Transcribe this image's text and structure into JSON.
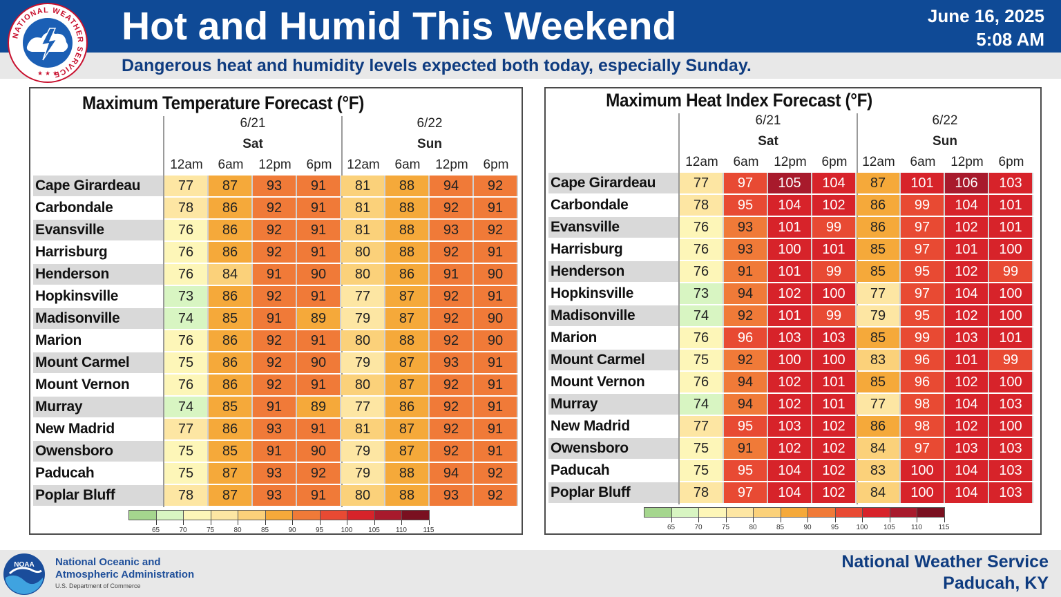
{
  "header": {
    "title": "Hot and Humid This Weekend",
    "date": "June 16, 2025",
    "time": "5:08 AM",
    "subtitle": "Dangerous heat and humidity levels expected both today, especially Sunday.",
    "logo_text": "NATIONAL WEATHER SERVICE"
  },
  "footer": {
    "noaa_line1": "National Oceanic and",
    "noaa_line2": "Atmospheric Administration",
    "noaa_line3": "U.S. Department of Commerce",
    "noaa_logo_text": "NOAA",
    "nws_line1": "National Weather Service",
    "nws_line2": "Paducah, KY"
  },
  "day_headers": [
    {
      "date": "6/21",
      "day": "Sat"
    },
    {
      "date": "6/22",
      "day": "Sun"
    }
  ],
  "times": [
    "12am",
    "6am",
    "12pm",
    "6pm",
    "12am",
    "6am",
    "12pm",
    "6pm"
  ],
  "cities": [
    "Cape Girardeau",
    "Carbondale",
    "Evansville",
    "Harrisburg",
    "Henderson",
    "Hopkinsville",
    "Madisonville",
    "Marion",
    "Mount Carmel",
    "Mount Vernon",
    "Murray",
    "New Madrid",
    "Owensboro",
    "Paducah",
    "Poplar Bluff"
  ],
  "legend": {
    "labels": [
      "65",
      "70",
      "75",
      "80",
      "85",
      "90",
      "95",
      "100",
      "105",
      "110",
      "115"
    ],
    "colors": [
      "#a5d68e",
      "#d8f5c2",
      "#fdf6b8",
      "#fde6a3",
      "#fbd17a",
      "#f5a93a",
      "#f07a38",
      "#e84a33",
      "#d7232a",
      "#a81a2c",
      "#7a1020"
    ]
  },
  "chart_data": [
    {
      "type": "table",
      "title": "Maximum Temperature Forecast (°F)",
      "columns": [
        "12am",
        "6am",
        "12pm",
        "6pm",
        "12am",
        "6am",
        "12pm",
        "6pm"
      ],
      "rows": [
        "Cape Girardeau",
        "Carbondale",
        "Evansville",
        "Harrisburg",
        "Henderson",
        "Hopkinsville",
        "Madisonville",
        "Marion",
        "Mount Carmel",
        "Mount Vernon",
        "Murray",
        "New Madrid",
        "Owensboro",
        "Paducah",
        "Poplar Bluff"
      ],
      "values": [
        [
          77,
          87,
          93,
          91,
          81,
          88,
          94,
          92
        ],
        [
          78,
          86,
          92,
          91,
          81,
          88,
          92,
          91
        ],
        [
          76,
          86,
          92,
          91,
          81,
          88,
          93,
          92
        ],
        [
          76,
          86,
          92,
          91,
          80,
          88,
          92,
          91
        ],
        [
          76,
          84,
          91,
          90,
          80,
          86,
          91,
          90
        ],
        [
          73,
          86,
          92,
          91,
          77,
          87,
          92,
          91
        ],
        [
          74,
          85,
          91,
          89,
          79,
          87,
          92,
          90
        ],
        [
          76,
          86,
          92,
          91,
          80,
          88,
          92,
          90
        ],
        [
          75,
          86,
          92,
          90,
          79,
          87,
          93,
          91
        ],
        [
          76,
          86,
          92,
          91,
          80,
          87,
          92,
          91
        ],
        [
          74,
          85,
          91,
          89,
          77,
          86,
          92,
          91
        ],
        [
          77,
          86,
          93,
          91,
          81,
          87,
          92,
          91
        ],
        [
          75,
          85,
          91,
          90,
          79,
          87,
          92,
          91
        ],
        [
          75,
          87,
          93,
          92,
          79,
          88,
          94,
          92
        ],
        [
          78,
          87,
          93,
          91,
          80,
          88,
          93,
          92
        ]
      ]
    },
    {
      "type": "table",
      "title": "Maximum Heat Index Forecast (°F)",
      "columns": [
        "12am",
        "6am",
        "12pm",
        "6pm",
        "12am",
        "6am",
        "12pm",
        "6pm"
      ],
      "rows": [
        "Cape Girardeau",
        "Carbondale",
        "Evansville",
        "Harrisburg",
        "Henderson",
        "Hopkinsville",
        "Madisonville",
        "Marion",
        "Mount Carmel",
        "Mount Vernon",
        "Murray",
        "New Madrid",
        "Owensboro",
        "Paducah",
        "Poplar Bluff"
      ],
      "values": [
        [
          77,
          97,
          105,
          104,
          87,
          101,
          106,
          103
        ],
        [
          78,
          95,
          104,
          102,
          86,
          99,
          104,
          101
        ],
        [
          76,
          93,
          101,
          99,
          86,
          97,
          102,
          101
        ],
        [
          76,
          93,
          100,
          101,
          85,
          97,
          101,
          100
        ],
        [
          76,
          91,
          101,
          99,
          85,
          95,
          102,
          99
        ],
        [
          73,
          94,
          102,
          100,
          77,
          97,
          104,
          100
        ],
        [
          74,
          92,
          101,
          99,
          79,
          95,
          102,
          100
        ],
        [
          76,
          96,
          103,
          103,
          85,
          99,
          103,
          101
        ],
        [
          75,
          92,
          100,
          100,
          83,
          96,
          101,
          99
        ],
        [
          76,
          94,
          102,
          101,
          85,
          96,
          102,
          100
        ],
        [
          74,
          94,
          102,
          101,
          77,
          98,
          104,
          103
        ],
        [
          77,
          95,
          103,
          102,
          86,
          98,
          102,
          100
        ],
        [
          75,
          91,
          102,
          102,
          84,
          97,
          103,
          103
        ],
        [
          75,
          95,
          104,
          102,
          83,
          100,
          104,
          103
        ],
        [
          78,
          97,
          104,
          102,
          84,
          100,
          104,
          103
        ]
      ]
    }
  ]
}
